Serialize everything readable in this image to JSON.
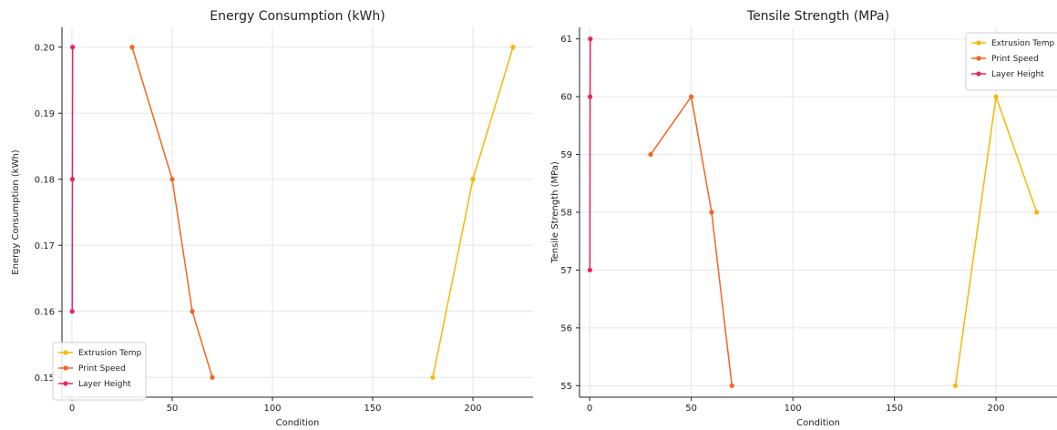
{
  "chart_data": [
    {
      "type": "line",
      "title": "Energy Consumption (kWh)",
      "xlabel": "Condition",
      "ylabel": "Energy Consumption (kWh)",
      "xlim": [
        -5,
        230
      ],
      "ylim": [
        0.147,
        0.203
      ],
      "xticks": [
        0,
        50,
        100,
        150,
        200
      ],
      "yticks": [
        0.15,
        0.16,
        0.17,
        0.18,
        0.19,
        0.2
      ],
      "ytick_labels": [
        "0.15",
        "0.16",
        "0.17",
        "0.18",
        "0.19",
        "0.20"
      ],
      "grid": true,
      "legend_position": "lower-left",
      "series": [
        {
          "name": "Extrusion Temp",
          "color": "#f5b800",
          "x": [
            180,
            200,
            220
          ],
          "y": [
            0.15,
            0.18,
            0.2
          ]
        },
        {
          "name": "Print Speed",
          "color": "#f26522",
          "x": [
            30,
            50,
            60,
            70
          ],
          "y": [
            0.2,
            0.18,
            0.16,
            0.15
          ]
        },
        {
          "name": "Layer Height",
          "color": "#e8245c",
          "x": [
            0.1,
            0.2,
            0.3
          ],
          "y": [
            0.16,
            0.18,
            0.2
          ]
        }
      ]
    },
    {
      "type": "line",
      "title": "Tensile Strength (MPa)",
      "xlabel": "Condition",
      "ylabel": "Tensile Strength (MPa)",
      "xlim": [
        -5,
        230
      ],
      "ylim": [
        54.8,
        61.2
      ],
      "xticks": [
        0,
        50,
        100,
        150,
        200
      ],
      "yticks": [
        55,
        56,
        57,
        58,
        59,
        60,
        61
      ],
      "ytick_labels": [
        "55",
        "56",
        "57",
        "58",
        "59",
        "60",
        "61"
      ],
      "grid": true,
      "legend_position": "upper-right",
      "series": [
        {
          "name": "Extrusion Temp",
          "color": "#f5b800",
          "x": [
            180,
            200,
            220
          ],
          "y": [
            55,
            60,
            58
          ]
        },
        {
          "name": "Print Speed",
          "color": "#f26522",
          "x": [
            30,
            50,
            60,
            70
          ],
          "y": [
            59,
            60,
            58,
            55
          ]
        },
        {
          "name": "Layer Height",
          "color": "#e8245c",
          "x": [
            0.1,
            0.2,
            0.3
          ],
          "y": [
            57,
            60,
            61
          ]
        }
      ]
    }
  ]
}
